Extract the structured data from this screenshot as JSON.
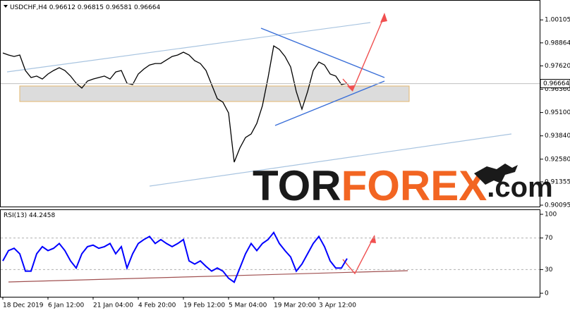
{
  "chart_data": [
    {
      "type": "line",
      "symbol": "USDCHF,H4",
      "ohlc": [
        0.96612,
        0.96815,
        0.96581,
        0.96664
      ],
      "watermark": [
        "TOR",
        "FOREX",
        ".com"
      ],
      "categories": [
        "18 Dec 2019",
        null,
        null,
        null,
        null,
        null,
        null,
        null,
        "6 Jan 12:00",
        null,
        null,
        null,
        null,
        null,
        null,
        null,
        "21 Jan 04:00",
        null,
        null,
        null,
        null,
        null,
        null,
        null,
        "4 Feb 20:00",
        null,
        null,
        null,
        null,
        null,
        null,
        null,
        "19 Feb 12:00",
        null,
        null,
        null,
        null,
        null,
        null,
        null,
        "5 Mar 04:00",
        null,
        null,
        null,
        null,
        null,
        null,
        null,
        "19 Mar 20:00",
        null,
        null,
        null,
        null,
        null,
        null,
        null,
        "3 Apr 12:00",
        null,
        null,
        null,
        null,
        null
      ],
      "series": [
        {
          "color": "#000000",
          "values": [
            0.9832,
            0.9821,
            0.9813,
            0.9821,
            0.9737,
            0.9699,
            0.9707,
            0.9691,
            0.9718,
            0.9737,
            0.9752,
            0.9737,
            0.9707,
            0.9668,
            0.9642,
            0.968,
            0.9691,
            0.9699,
            0.9707,
            0.9691,
            0.9729,
            0.9737,
            0.9668,
            0.9661,
            0.9718,
            0.9745,
            0.9767,
            0.9775,
            0.9775,
            0.9794,
            0.9813,
            0.9821,
            0.9836,
            0.9821,
            0.979,
            0.9775,
            0.9737,
            0.9661,
            0.9585,
            0.9566,
            0.9508,
            0.9242,
            0.9318,
            0.9375,
            0.9394,
            0.9451,
            0.9547,
            0.9699,
            0.987,
            0.9851,
            0.9813,
            0.9756,
            0.9623,
            0.9528,
            0.9623,
            0.9737,
            0.9783,
            0.9767,
            0.9718,
            0.9707,
            0.9661,
            0.9668
          ]
        }
      ],
      "ylim": [
        0.9002,
        1.0118
      ],
      "yticks": [
        1.00105,
        0.98864,
        {
          "value": 0.9762,
          "label": "0.97620"
        },
        {
          "value": 0.9636,
          "label": "0.96360"
        },
        {
          "value": 0.951,
          "label": "0.95100"
        },
        {
          "value": 0.9384,
          "label": "0.93840"
        },
        {
          "value": 0.9258,
          "label": "0.92580"
        },
        0.91355,
        0.90095
      ],
      "grid": false
    },
    {
      "type": "line",
      "title": "RSI(13)",
      "last_value": 44.2458,
      "series": [
        {
          "color": "#0000ff",
          "values": [
            41,
            54,
            57,
            50,
            28,
            28,
            50,
            59,
            54,
            57,
            63,
            54,
            41,
            32,
            50,
            59,
            61,
            57,
            59,
            63,
            50,
            59,
            32,
            50,
            63,
            68,
            72,
            63,
            68,
            63,
            59,
            63,
            68,
            41,
            37,
            41,
            34,
            28,
            32,
            28,
            19,
            14,
            32,
            50,
            63,
            54,
            63,
            68,
            77,
            63,
            54,
            46,
            28,
            37,
            50,
            63,
            72,
            59,
            41,
            32,
            32,
            44
          ]
        }
      ],
      "ylim": [
        0,
        100
      ],
      "yticks": [
        100,
        70,
        30,
        0
      ],
      "levels": [
        70,
        30
      ]
    }
  ]
}
